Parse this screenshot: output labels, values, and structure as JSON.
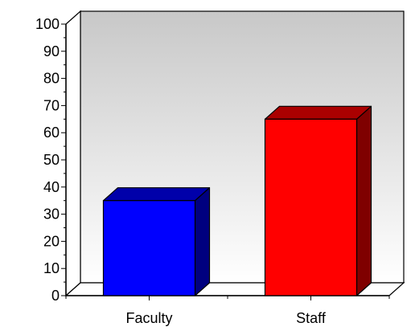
{
  "chart_data": {
    "type": "bar",
    "categories": [
      "Faculty",
      "Staff"
    ],
    "values": [
      35,
      65
    ],
    "ylim": [
      0,
      100
    ],
    "yticks": [
      0,
      10,
      20,
      30,
      40,
      50,
      60,
      70,
      80,
      90,
      100
    ],
    "grid": false,
    "legend": "none",
    "title": "",
    "xlabel": "",
    "ylabel": "",
    "colors": {
      "bars": [
        "#0000ff",
        "#ff0000"
      ],
      "bar_tops": [
        "#0000aa",
        "#aa0000"
      ],
      "bar_sides": [
        "#00007f",
        "#7f0000"
      ],
      "wall_top": "#c8c8c8",
      "wall_bottom": "#ffffff",
      "floor": "#ffffff",
      "outline": "#000000"
    }
  }
}
